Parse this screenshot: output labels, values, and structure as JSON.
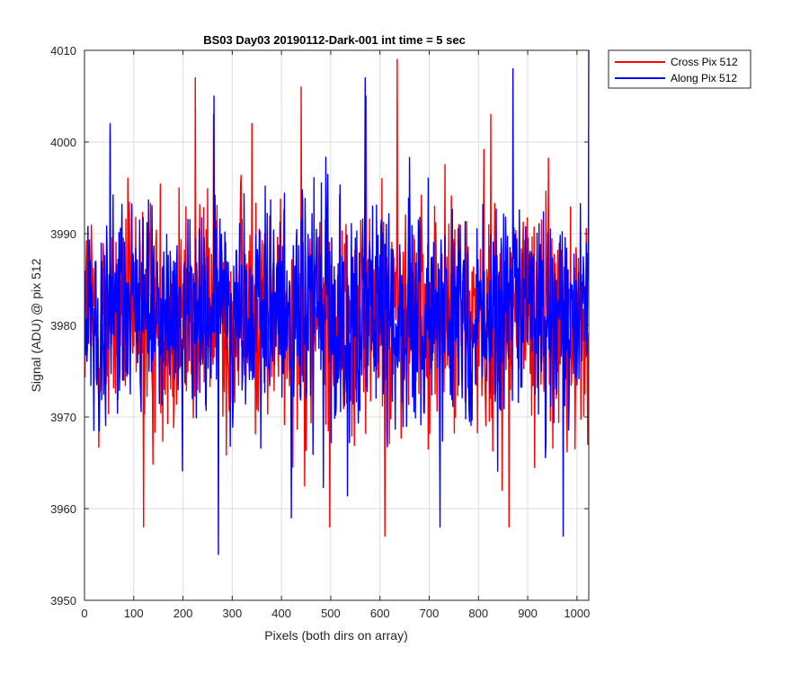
{
  "chart_data": {
    "type": "line",
    "title": "BS03 Day03 20190112-Dark-001 int time = 5 sec",
    "xlabel": "Pixels (both dirs on array)",
    "ylabel": "Signal (ADU) @ pix 512",
    "xlim": [
      0,
      1024
    ],
    "ylim": [
      3950,
      4010
    ],
    "x_ticks": [
      "0",
      "100",
      "200",
      "300",
      "400",
      "500",
      "600",
      "700",
      "800",
      "900",
      "1000"
    ],
    "y_ticks": [
      "3950",
      "3960",
      "3970",
      "3980",
      "3990",
      "4000",
      "4010"
    ],
    "grid": true,
    "legend_position": "outside top-right",
    "x_points": "1 to 1024 (every pixel)",
    "series": [
      {
        "name": "Cross Pix 512",
        "color": "#ff0000",
        "approx_mean": 3981,
        "approx_min": 3957,
        "approx_max": 4009,
        "notable_points": [
          {
            "x": 52,
            "y": 4001
          },
          {
            "x": 120,
            "y": 3958
          },
          {
            "x": 225,
            "y": 4007
          },
          {
            "x": 262,
            "y": 4003
          },
          {
            "x": 340,
            "y": 4002
          },
          {
            "x": 440,
            "y": 4006
          },
          {
            "x": 498,
            "y": 3958
          },
          {
            "x": 572,
            "y": 4005
          },
          {
            "x": 610,
            "y": 3957
          },
          {
            "x": 635,
            "y": 4009
          },
          {
            "x": 825,
            "y": 4003
          },
          {
            "x": 862,
            "y": 3958
          },
          {
            "x": 1022,
            "y": 3967
          }
        ]
      },
      {
        "name": "Along Pix 512",
        "color": "#0000ff",
        "approx_mean": 3981,
        "approx_min": 3955,
        "approx_max": 4010,
        "notable_points": [
          {
            "x": 52,
            "y": 4002
          },
          {
            "x": 272,
            "y": 3955
          },
          {
            "x": 263,
            "y": 4005
          },
          {
            "x": 420,
            "y": 3959
          },
          {
            "x": 570,
            "y": 4007
          },
          {
            "x": 722,
            "y": 3958
          },
          {
            "x": 870,
            "y": 4008
          },
          {
            "x": 972,
            "y": 3957
          },
          {
            "x": 1024,
            "y": 4010
          }
        ]
      }
    ]
  }
}
